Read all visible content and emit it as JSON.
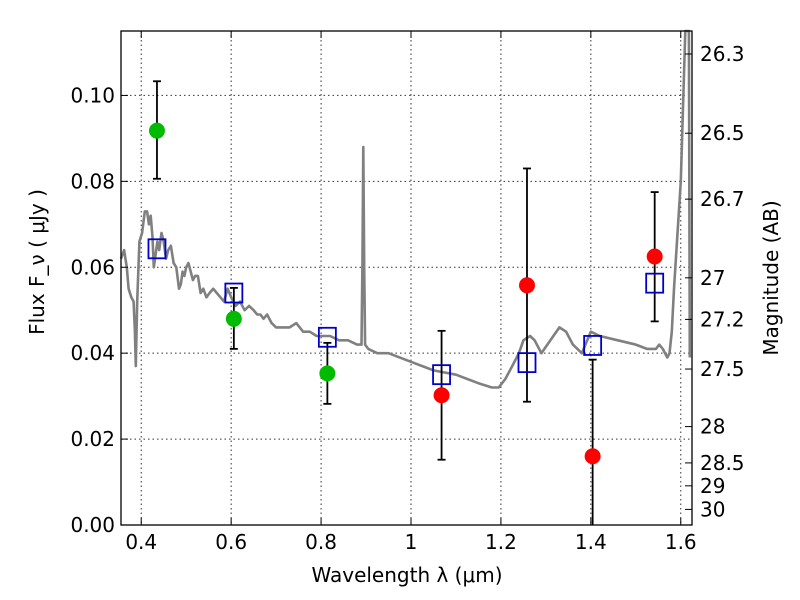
{
  "chart_data": {
    "type": "scatter",
    "xlabel": "Wavelength  λ (μm)",
    "ylabel": "Flux  F_ν  ( μJy )",
    "y2label": "Magnitude (AB)",
    "xlim": [
      0.355,
      1.625
    ],
    "ylim": [
      0.0,
      0.115
    ],
    "x_ticks": [
      0.4,
      0.6,
      0.8,
      1.0,
      1.2,
      1.4,
      1.6
    ],
    "x_tick_labels": [
      "0.4",
      "0.6",
      "0.8",
      "1",
      "1.2",
      "1.4",
      "1.6"
    ],
    "y_ticks": [
      0.0,
      0.02,
      0.04,
      0.06,
      0.08,
      0.1
    ],
    "y_tick_labels": [
      "0.00",
      "0.02",
      "0.04",
      "0.06",
      "0.08",
      "0.10"
    ],
    "y2_tick_labels": [
      "26.3",
      "26.5",
      "26.7",
      "27",
      "27.2",
      "27.5",
      "28",
      "28.5",
      "29",
      "30"
    ],
    "grid": true,
    "colors": {
      "model": "#808080",
      "detected": "#00bb00",
      "upper": "#ff0000",
      "model_box": "#0000cc",
      "errorbar": "#000000"
    },
    "model_spectrum": {
      "x": [
        0.355,
        0.362,
        0.368,
        0.372,
        0.378,
        0.383,
        0.386,
        0.388,
        0.391,
        0.396,
        0.402,
        0.408,
        0.413,
        0.417,
        0.421,
        0.425,
        0.428,
        0.432,
        0.436,
        0.44,
        0.445,
        0.45,
        0.455,
        0.46,
        0.466,
        0.472,
        0.478,
        0.484,
        0.488,
        0.492,
        0.496,
        0.5,
        0.505,
        0.51,
        0.515,
        0.52,
        0.526,
        0.532,
        0.538,
        0.545,
        0.552,
        0.56,
        0.568,
        0.576,
        0.584,
        0.592,
        0.6,
        0.61,
        0.62,
        0.63,
        0.64,
        0.65,
        0.658,
        0.665,
        0.672,
        0.68,
        0.69,
        0.7,
        0.715,
        0.73,
        0.745,
        0.76,
        0.775,
        0.79,
        0.805,
        0.82,
        0.84,
        0.86,
        0.88,
        0.89,
        0.892,
        0.894,
        0.896,
        0.898,
        0.905,
        0.925,
        0.95,
        1.0,
        1.05,
        1.1,
        1.15,
        1.18,
        1.195,
        1.21,
        1.225,
        1.24,
        1.25,
        1.265,
        1.275,
        1.29,
        1.31,
        1.33,
        1.345,
        1.36,
        1.38,
        1.4,
        1.42,
        1.46,
        1.5,
        1.525,
        1.535,
        1.545,
        1.552,
        1.56,
        1.565,
        1.57,
        1.575,
        1.58,
        1.585,
        1.6,
        1.61,
        1.618,
        1.62
      ],
      "y": [
        0.062,
        0.064,
        0.06,
        0.055,
        0.053,
        0.052,
        0.045,
        0.037,
        0.052,
        0.066,
        0.068,
        0.073,
        0.073,
        0.07,
        0.072,
        0.067,
        0.06,
        0.063,
        0.066,
        0.064,
        0.068,
        0.066,
        0.062,
        0.064,
        0.065,
        0.061,
        0.06,
        0.055,
        0.056,
        0.059,
        0.058,
        0.06,
        0.061,
        0.059,
        0.057,
        0.058,
        0.058,
        0.054,
        0.055,
        0.053,
        0.054,
        0.055,
        0.054,
        0.053,
        0.052,
        0.055,
        0.053,
        0.051,
        0.052,
        0.05,
        0.051,
        0.05,
        0.049,
        0.049,
        0.048,
        0.049,
        0.047,
        0.046,
        0.046,
        0.046,
        0.047,
        0.045,
        0.045,
        0.044,
        0.044,
        0.044,
        0.043,
        0.043,
        0.042,
        0.042,
        0.06,
        0.088,
        0.06,
        0.042,
        0.041,
        0.04,
        0.04,
        0.038,
        0.036,
        0.035,
        0.033,
        0.032,
        0.032,
        0.034,
        0.037,
        0.04,
        0.043,
        0.044,
        0.043,
        0.04,
        0.043,
        0.046,
        0.045,
        0.042,
        0.04,
        0.045,
        0.044,
        0.043,
        0.042,
        0.041,
        0.041,
        0.041,
        0.042,
        0.041,
        0.04,
        0.039,
        0.04,
        0.045,
        0.055,
        0.08,
        0.115,
        0.115,
        0.039
      ]
    },
    "series": [
      {
        "kind": "measured",
        "marker": "circle",
        "points": [
          {
            "x": 0.435,
            "y": 0.0918,
            "err_low": 0.0806,
            "err_high": 0.1033,
            "color": "#00bb00"
          },
          {
            "x": 0.606,
            "y": 0.048,
            "err_low": 0.041,
            "err_high": 0.0552,
            "color": "#00bb00"
          },
          {
            "x": 0.814,
            "y": 0.0353,
            "err_low": 0.0282,
            "err_high": 0.0424,
            "color": "#00bb00"
          },
          {
            "x": 1.068,
            "y": 0.0302,
            "err_low": 0.0152,
            "err_high": 0.0452,
            "color": "#ff0000"
          },
          {
            "x": 1.258,
            "y": 0.0558,
            "err_low": 0.0287,
            "err_high": 0.083,
            "color": "#ff0000"
          },
          {
            "x": 1.404,
            "y": 0.016,
            "err_low": 0.0,
            "err_high": 0.0385,
            "color": "#ff0000"
          },
          {
            "x": 1.542,
            "y": 0.0625,
            "err_low": 0.0474,
            "err_high": 0.0775,
            "color": "#ff0000"
          }
        ]
      },
      {
        "kind": "model-band",
        "marker": "square",
        "points": [
          {
            "x": 0.435,
            "y": 0.0643
          },
          {
            "x": 0.606,
            "y": 0.054
          },
          {
            "x": 0.814,
            "y": 0.0437
          },
          {
            "x": 1.068,
            "y": 0.035
          },
          {
            "x": 1.258,
            "y": 0.0378
          },
          {
            "x": 1.404,
            "y": 0.0418
          },
          {
            "x": 1.542,
            "y": 0.0563
          }
        ]
      }
    ]
  }
}
